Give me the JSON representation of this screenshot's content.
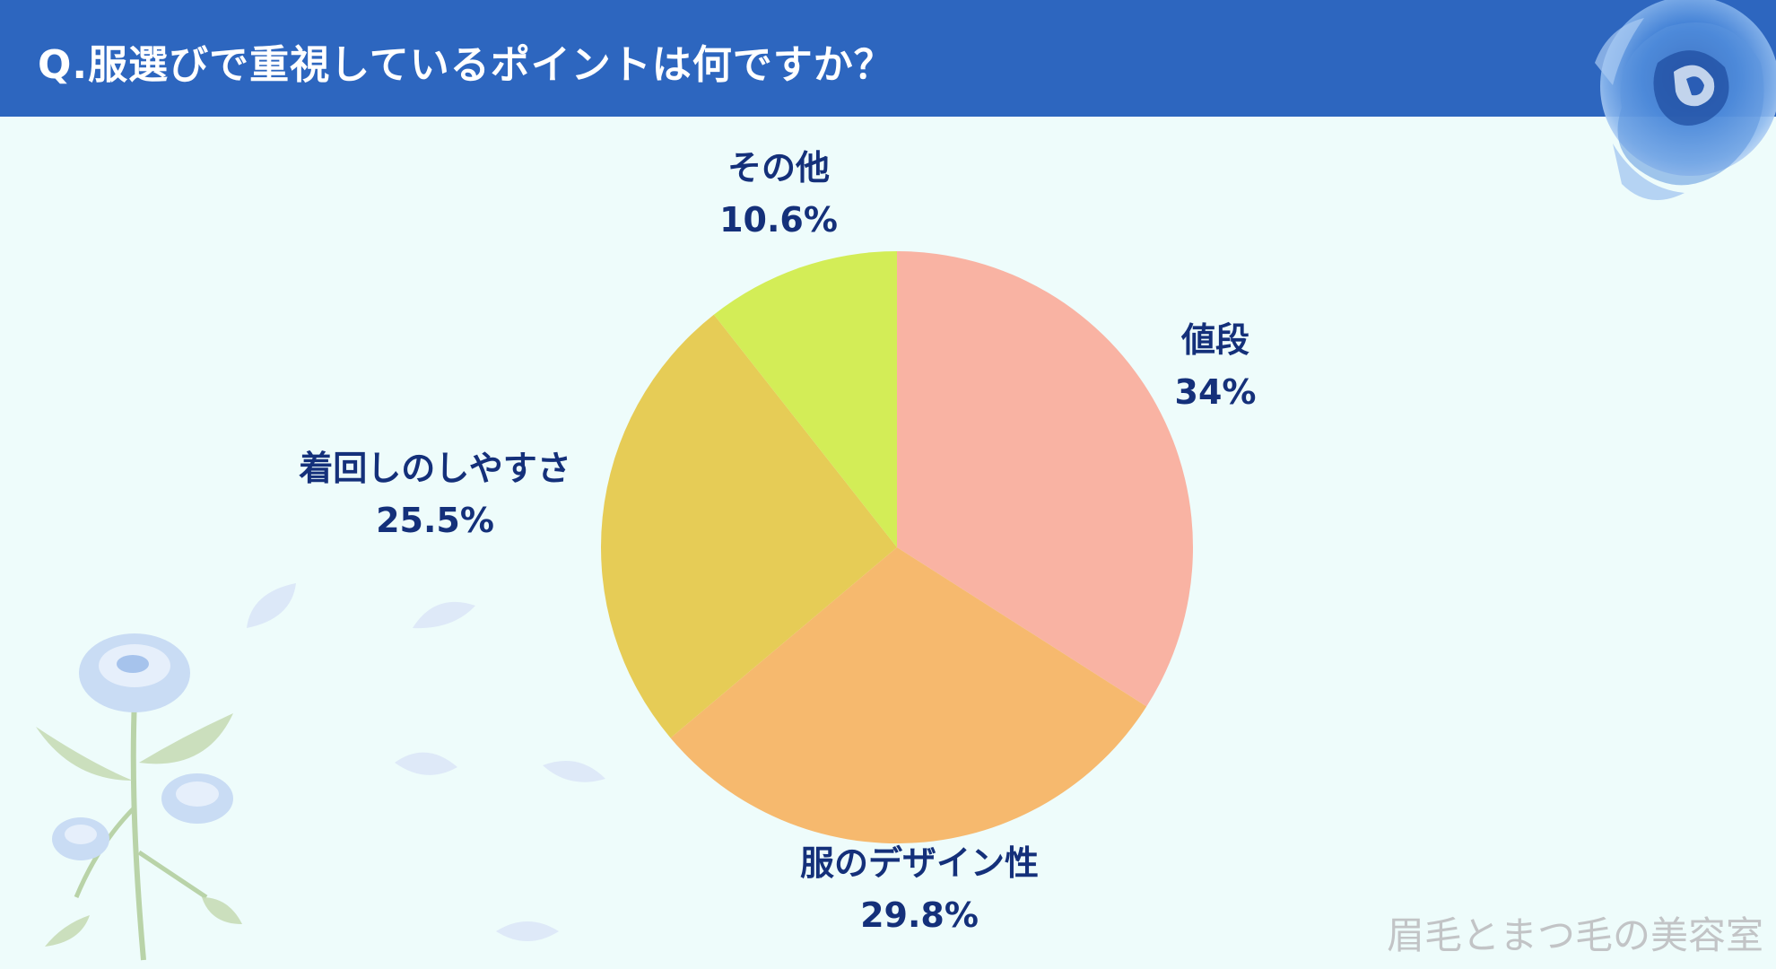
{
  "header": {
    "title": "Q.服選びで重視しているポイントは何ですか？"
  },
  "chart_data": {
    "type": "pie",
    "title": "",
    "slices": [
      {
        "label": "値段",
        "value": 34,
        "value_label": "34%",
        "color": "#f9b3a3"
      },
      {
        "label": "服のデザイン性",
        "value": 29.8,
        "value_label": "29.8%",
        "color": "#f6b96e"
      },
      {
        "label": "着回しのしやすさ",
        "value": 25.5,
        "value_label": "25.5%",
        "color": "#e6cc56"
      },
      {
        "label": "その他",
        "value": 10.6,
        "value_label": "10.6%",
        "color": "#d3ed57"
      }
    ],
    "start": "12 o'clock",
    "direction": "clockwise",
    "label_color": "#14307a"
  },
  "watermark": {
    "text": "眉毛とまつ毛の美容室"
  },
  "colors": {
    "header_bg": "#2d66bf",
    "page_bg": "#eefcfb",
    "rose_blue": "#3c7ed6",
    "rose_pale": "#c9dcf4",
    "leaf_green": "#b9d3a8"
  },
  "decorations": {
    "top_right": "blue-rose-icon",
    "bottom_left": "pale-blue-rose-branch-icon",
    "petals": "petal-icon"
  }
}
